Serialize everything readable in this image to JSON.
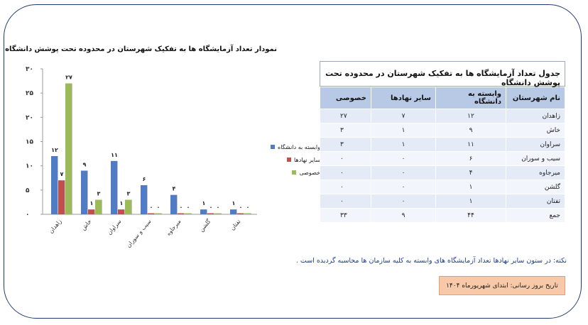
{
  "chart_data": {
    "type": "bar",
    "title": "نمودار تعداد آزمایشگاه ها به تفکیک شهرستان در محدوده تحت پوشش دانشگاه",
    "categories": [
      "زاهدان",
      "خاش",
      "سراوان",
      "سیب و سوران",
      "میرجاوه",
      "گلشن",
      "تفتان"
    ],
    "series": [
      {
        "name": "وابسته به دانشگاه",
        "values": [
          12,
          9,
          11,
          6,
          4,
          1,
          1
        ],
        "labels": [
          "۱۲",
          "۹",
          "۱۱",
          "۶",
          "۴",
          "۱",
          "۱"
        ],
        "color": "#4f7cc4"
      },
      {
        "name": "سایر نهادها",
        "values": [
          7,
          1,
          1,
          0,
          0,
          0,
          0
        ],
        "labels": [
          "۷",
          "۱",
          "۱",
          "۰",
          "۰",
          "۰",
          "۰"
        ],
        "color": "#c0504d"
      },
      {
        "name": "خصوصی",
        "values": [
          27,
          3,
          3,
          0,
          0,
          0,
          0
        ],
        "labels": [
          "۲۷",
          "۳",
          "۳",
          "۰",
          "۰",
          "۰",
          "۰"
        ],
        "color": "#9bbb59"
      }
    ],
    "ylim": [
      0,
      30
    ],
    "yticks": [
      0,
      5,
      10,
      15,
      20,
      25,
      30
    ],
    "ytick_labels": [
      "۰",
      "۵",
      "۱۰",
      "۱۵",
      "۲۰",
      "۲۵",
      "۳۰"
    ],
    "legend_position": "right"
  },
  "table": {
    "title": "جدول تعداد آزمایشگاه ها به تفکیک شهرستان در محدوده تحت پوشش دانشگاه",
    "headers": [
      "نام شهرستان",
      "وابسته به دانشگاه",
      "سایر نهادها",
      "خصوصی"
    ],
    "rows": [
      [
        "زاهدان",
        "۱۲",
        "۷",
        "۲۷"
      ],
      [
        "خاش",
        "۹",
        "۱",
        "۳"
      ],
      [
        "سراوان",
        "۱۱",
        "۱",
        "۳"
      ],
      [
        "سیب و سوران",
        "۶",
        "۰",
        "۰"
      ],
      [
        "میرجاوه",
        "۴",
        "۰",
        "۰"
      ],
      [
        "گلشن",
        "۱",
        "۰",
        "۰"
      ],
      [
        "تفتان",
        "۱",
        "۰",
        "۰"
      ],
      [
        "جمع",
        "۴۴",
        "۹",
        "۳۳"
      ]
    ]
  },
  "note": "نکته: در ستون سایر نهادها تعداد آزمایشگاه های وابسته به کلیه سازمان ها محاسبه گردیده است .",
  "update_date": "تاریخ بروز رسانی: ابتدای  شهریورماه ۱۴۰۴"
}
